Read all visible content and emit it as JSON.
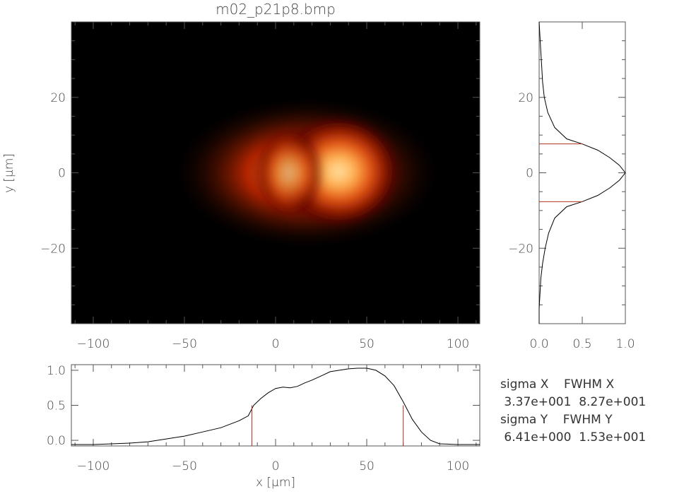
{
  "chart_data": [
    {
      "type": "heatmap",
      "title": "m02_p21p8.bmp",
      "xlabel": "",
      "ylabel": "y [µm]",
      "xlim": [
        -112,
        112
      ],
      "ylim": [
        -40,
        40
      ],
      "xticks": [
        -100,
        -50,
        0,
        50,
        100
      ],
      "yticks": [
        -20,
        0,
        20
      ],
      "tick_labels_x": [
        "−100",
        "−50",
        "0",
        "50",
        "100"
      ],
      "tick_labels_y": [
        "−20",
        "0",
        "20"
      ],
      "colormap": [
        "#000000",
        "#8a0a00",
        "#e04a00",
        "#ffa040",
        "#ffe0a0"
      ],
      "beam": {
        "center_x": 25,
        "center_y": 0,
        "sigma_x": 33.7,
        "sigma_y": 6.41
      }
    },
    {
      "type": "line",
      "name": "y-profile",
      "xlim": [
        0,
        1
      ],
      "ylim": [
        -40,
        40
      ],
      "xticks": [
        0.0,
        0.5,
        1.0
      ],
      "tick_labels_x": [
        "0.0",
        "0.5",
        "1.0"
      ],
      "yticks": [
        -20,
        0,
        20
      ],
      "tick_labels_y": [
        "−20",
        "0",
        "20"
      ],
      "y": [
        -40,
        -36,
        -32,
        -28,
        -24,
        -20,
        -16,
        -12,
        -9,
        -7.65,
        -6,
        -4,
        -2,
        0,
        2,
        4,
        6,
        7.65,
        9,
        12,
        16,
        20,
        24,
        28,
        32,
        36,
        40
      ],
      "value": [
        0.0,
        0.0,
        0.01,
        0.02,
        0.04,
        0.07,
        0.11,
        0.18,
        0.32,
        0.5,
        0.68,
        0.82,
        0.93,
        1.0,
        0.93,
        0.82,
        0.68,
        0.5,
        0.32,
        0.18,
        0.1,
        0.06,
        0.04,
        0.03,
        0.02,
        0.01,
        0.0
      ],
      "fwhm_markers": [
        -7.65,
        7.65
      ]
    },
    {
      "type": "line",
      "name": "x-profile",
      "xlabel": "x [µm]",
      "xlim": [
        -112,
        112
      ],
      "ylim": [
        -0.08,
        1.08
      ],
      "xticks": [
        -100,
        -50,
        0,
        50,
        100
      ],
      "tick_labels_x": [
        "−100",
        "−50",
        "0",
        "50",
        "100"
      ],
      "yticks": [
        0.0,
        0.5,
        1.0
      ],
      "tick_labels_y": [
        "0.0",
        "0.5",
        "1.0"
      ],
      "x": [
        -112,
        -100,
        -90,
        -80,
        -70,
        -60,
        -50,
        -40,
        -30,
        -20,
        -15,
        -12,
        -8,
        -4,
        0,
        4,
        8,
        12,
        16,
        20,
        25,
        30,
        35,
        40,
        45,
        50,
        55,
        60,
        65,
        70,
        75,
        80,
        85,
        90,
        100,
        112
      ],
      "value": [
        -0.06,
        -0.06,
        -0.05,
        -0.04,
        -0.02,
        0.02,
        0.06,
        0.12,
        0.18,
        0.28,
        0.35,
        0.5,
        0.6,
        0.68,
        0.74,
        0.76,
        0.75,
        0.77,
        0.82,
        0.86,
        0.92,
        0.98,
        1.0,
        1.02,
        1.03,
        1.03,
        1.0,
        0.92,
        0.78,
        0.55,
        0.3,
        0.12,
        0.0,
        -0.05,
        -0.06,
        -0.06
      ],
      "fwhm_markers": [
        -13,
        70
      ]
    }
  ],
  "stats": {
    "header_1": "sigma X    FWHM X",
    "values_1": " 3.37e+001  8.27e+001",
    "header_2": "sigma Y    FWHM Y",
    "values_2": " 6.41e+000  1.53e+001"
  },
  "colors": {
    "axis": "#555555",
    "curve": "#000000",
    "marker": "#b03020"
  }
}
